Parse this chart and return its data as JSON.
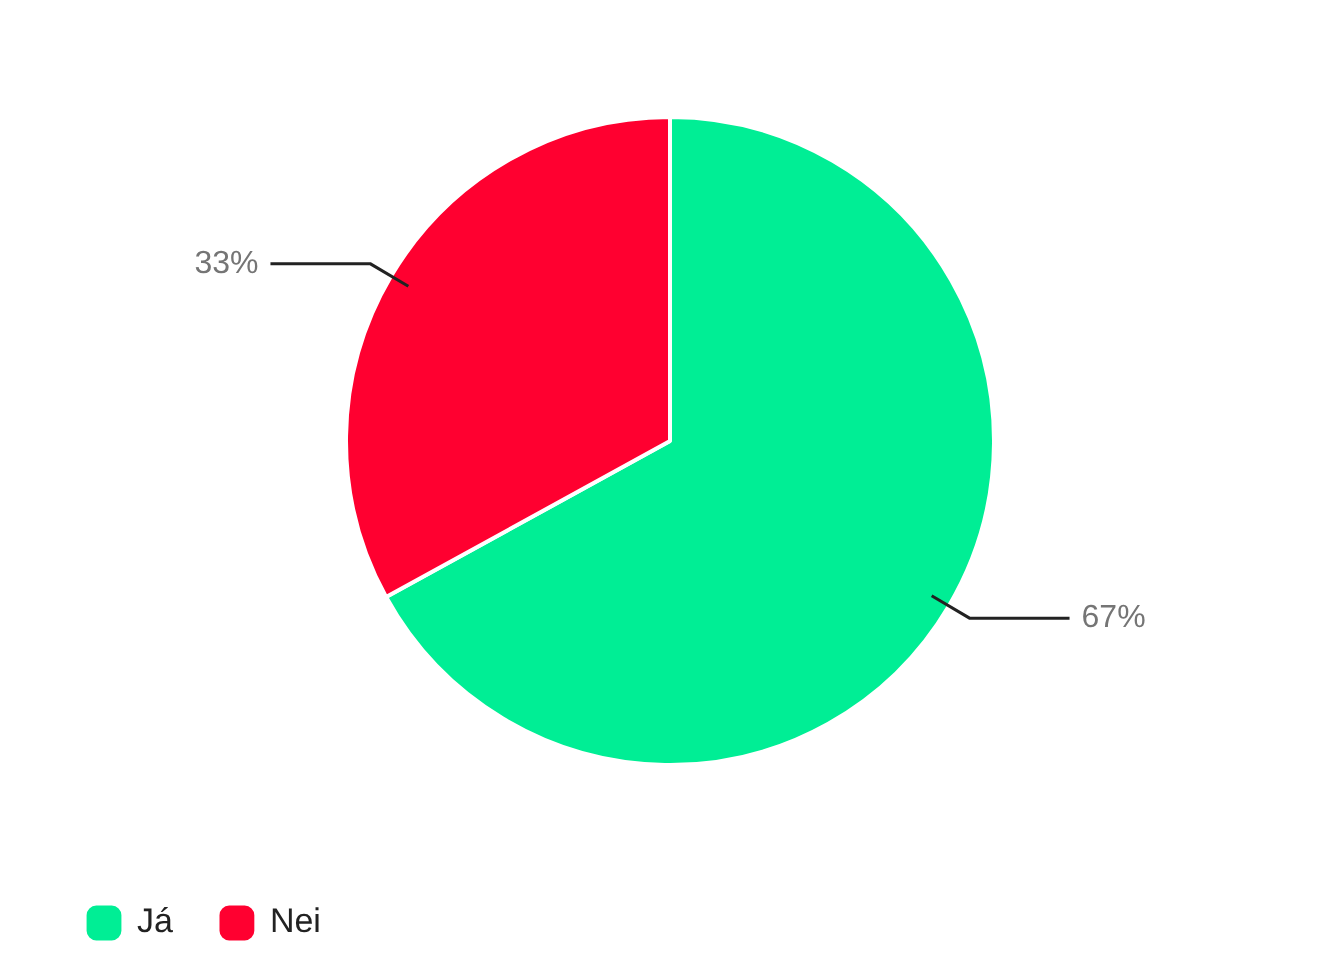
{
  "chart_data": {
    "type": "pie",
    "categories": [
      "Já",
      "Nei"
    ],
    "values": [
      67,
      33
    ],
    "colors": [
      "#00ee95",
      "#ff0030"
    ],
    "value_labels": [
      "67%",
      "33%"
    ],
    "legend": "bottom left"
  }
}
